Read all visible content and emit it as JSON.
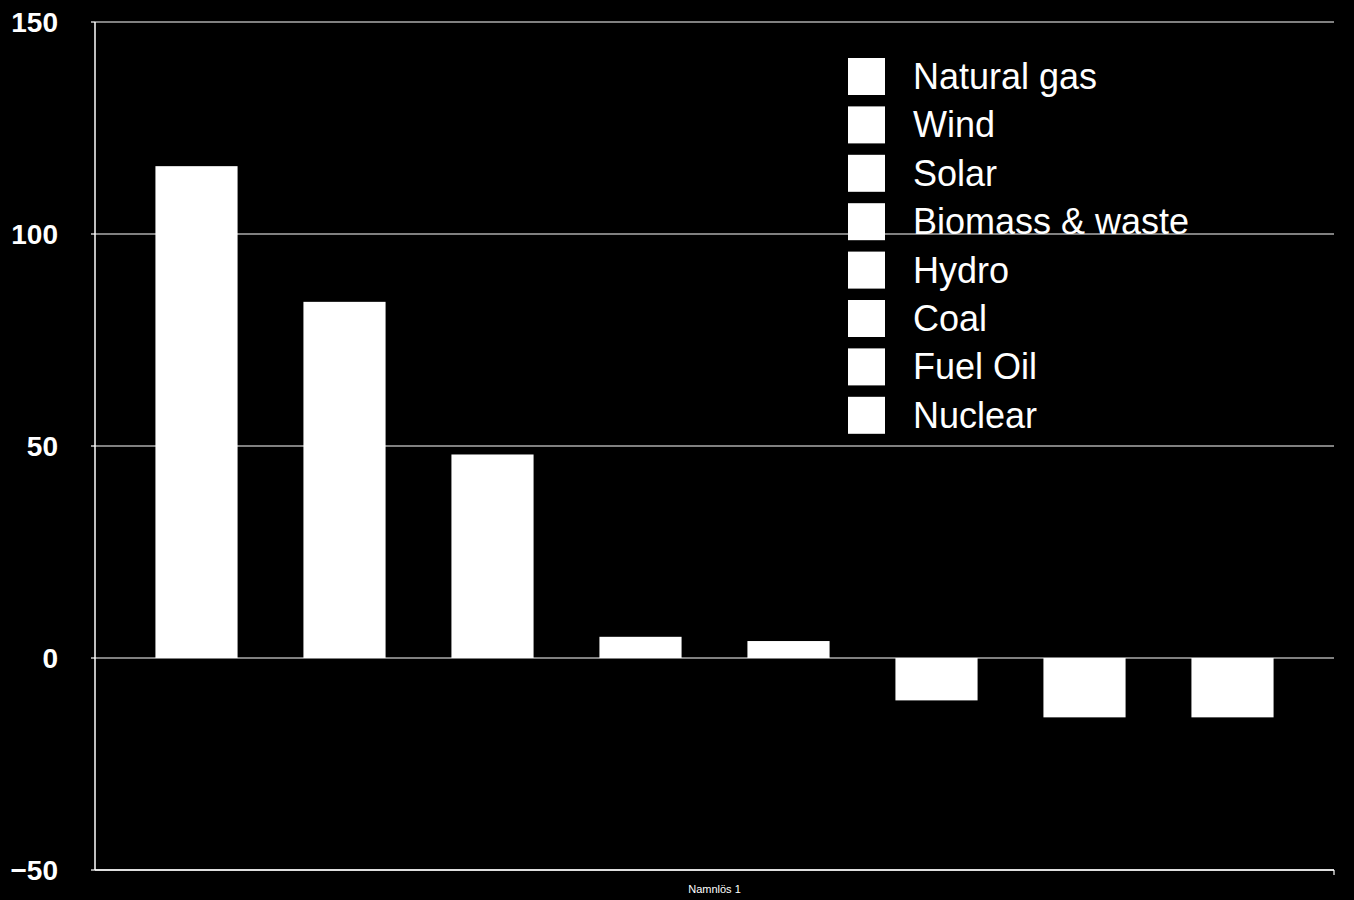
{
  "chart_data": {
    "type": "bar",
    "categories": [
      "Namnlös 1"
    ],
    "series": [
      {
        "name": "Natural gas",
        "color": "#ffffff",
        "values": [
          116
        ]
      },
      {
        "name": "Wind",
        "color": "#ffffff",
        "values": [
          84
        ]
      },
      {
        "name": "Solar",
        "color": "#ffffff",
        "values": [
          48
        ]
      },
      {
        "name": "Biomass & waste",
        "color": "#ffffff",
        "values": [
          5
        ]
      },
      {
        "name": "Hydro",
        "color": "#ffffff",
        "values": [
          4
        ]
      },
      {
        "name": "Coal",
        "color": "#ffffff",
        "values": [
          -10
        ]
      },
      {
        "name": "Fuel Oil",
        "color": "#ffffff",
        "values": [
          -14
        ]
      },
      {
        "name": "Nuclear",
        "color": "#ffffff",
        "values": [
          -14
        ]
      }
    ],
    "ylim": [
      -50,
      150
    ],
    "yticks": [
      {
        "value": -50,
        "label": "−50"
      },
      0,
      50,
      100,
      150
    ],
    "grid": true,
    "legend": "top-right"
  }
}
